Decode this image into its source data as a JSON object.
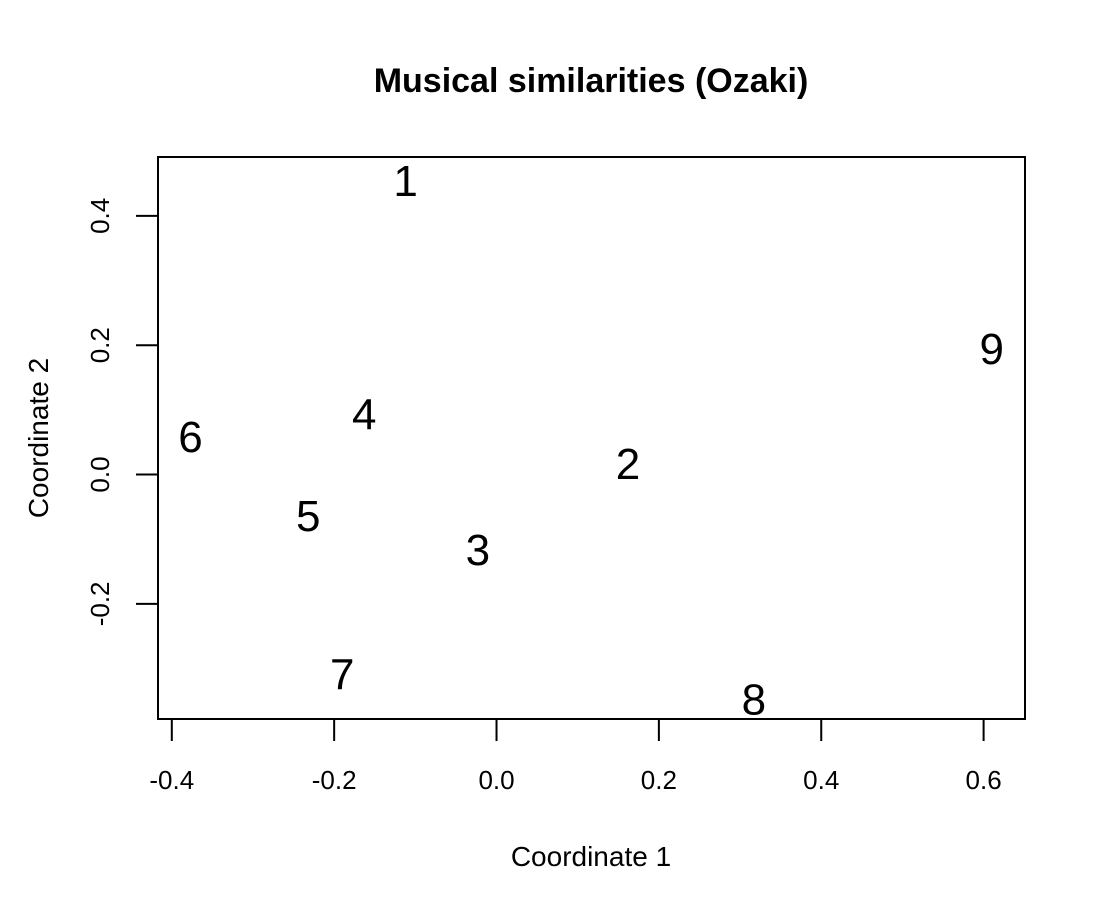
{
  "chart_data": {
    "type": "scatter",
    "title": "Musical similarities (Ozaki)",
    "xlabel": "Coordinate 1",
    "ylabel": "Coordinate 2",
    "xlim": [
      -0.417,
      0.651
    ],
    "ylim": [
      -0.378,
      0.491
    ],
    "xticks": [
      -0.4,
      -0.2,
      0.0,
      0.2,
      0.4,
      0.6
    ],
    "xtick_labels": [
      "-0.4",
      "-0.2",
      "0.0",
      "0.2",
      "0.4",
      "0.6"
    ],
    "yticks": [
      -0.2,
      0.0,
      0.2,
      0.4
    ],
    "ytick_labels": [
      "-0.2",
      "0.0",
      "0.2",
      "0.4"
    ],
    "grid": false,
    "points": [
      {
        "label": "1",
        "x": -0.112,
        "y": 0.454
      },
      {
        "label": "2",
        "x": 0.162,
        "y": 0.016
      },
      {
        "label": "3",
        "x": -0.023,
        "y": -0.117
      },
      {
        "label": "4",
        "x": -0.163,
        "y": 0.093
      },
      {
        "label": "5",
        "x": -0.232,
        "y": -0.064
      },
      {
        "label": "6",
        "x": -0.377,
        "y": 0.058
      },
      {
        "label": "7",
        "x": -0.19,
        "y": -0.309
      },
      {
        "label": "8",
        "x": 0.317,
        "y": -0.348
      },
      {
        "label": "9",
        "x": 0.61,
        "y": 0.194
      }
    ]
  }
}
